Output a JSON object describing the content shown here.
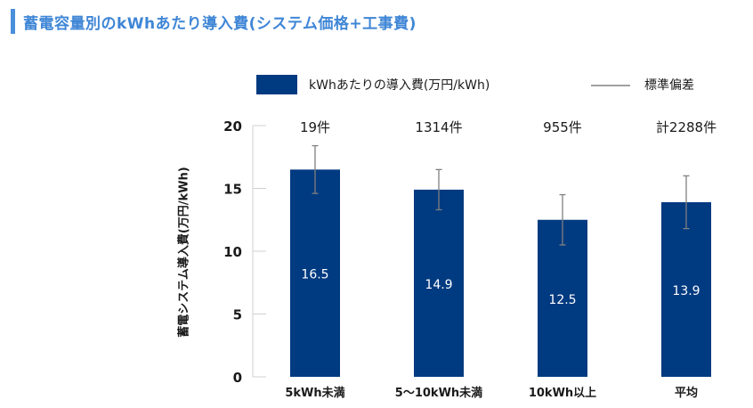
{
  "title": "蓄電容量別のkWhあたり導入費(システム価格+工事費)",
  "colors": {
    "bar": "#003a80",
    "error": "#808080",
    "title": "#3f86d6",
    "accent": "#4a8fdc"
  },
  "chart_data": {
    "type": "bar",
    "categories": [
      "5kWh未満",
      "5〜10kWh未満",
      "10kWh以上",
      "平均"
    ],
    "series": [
      {
        "name": "kWhあたりの導入費(万円/kWh)",
        "values": [
          16.5,
          14.9,
          12.5,
          13.9
        ]
      }
    ],
    "error_bars": {
      "name": "標準偏差",
      "low": [
        14.6,
        13.3,
        10.5,
        11.8
      ],
      "high": [
        18.4,
        16.5,
        14.5,
        16.0
      ]
    },
    "counts": [
      "19件",
      "1314件",
      "955件",
      "計2288件"
    ],
    "data_labels": [
      "16.5",
      "14.9",
      "12.5",
      "13.9"
    ],
    "yticks": [
      "0",
      "5",
      "10",
      "15",
      "20"
    ],
    "ylabel": "蓄電システム導入費(万円/kWh)",
    "xlabel": "",
    "ylim": [
      0,
      20
    ],
    "grid": false,
    "legend": "top"
  }
}
